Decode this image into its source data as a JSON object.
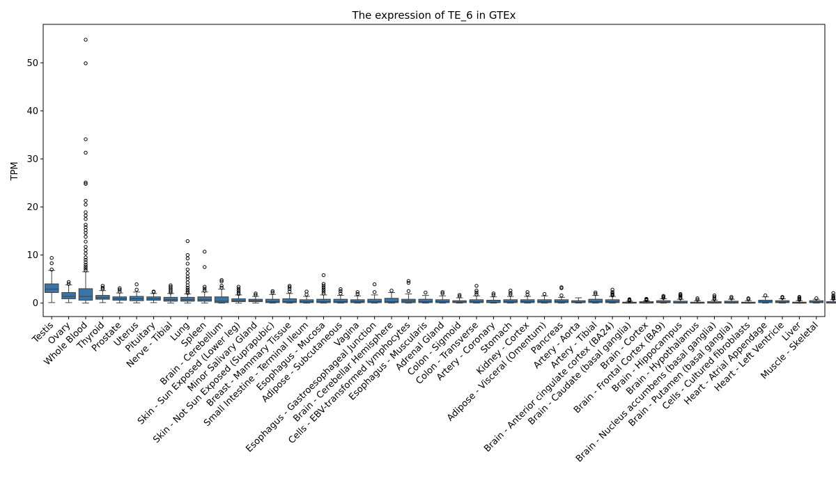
{
  "chart_data": {
    "type": "box",
    "title": "The expression of TE_6 in GTEx",
    "xlabel": "",
    "ylabel": "TPM",
    "ylim": [
      -2.8,
      58
    ],
    "yticks": [
      0,
      10,
      20,
      30,
      40,
      50
    ],
    "grid": false,
    "legend": "none",
    "box_color": "#3a75a6",
    "categories": [
      "Testis",
      "Ovary",
      "Whole Blood",
      "Thyroid",
      "Prostate",
      "Uterus",
      "Pituitary",
      "Nerve - Tibial",
      "Lung",
      "Spleen",
      "Brain - Cerebellum",
      "Skin - Sun Exposed (Lower leg)",
      "Minor Salivary Gland",
      "Skin - Not Sun Exposed (Suprapubic)",
      "Breast - Mammary Tissue",
      "Small Intestine - Terminal Ileum",
      "Esophagus - Mucosa",
      "Adipose - Subcutaneous",
      "Vagina",
      "Esophagus - Gastroesophageal Junction",
      "Brain - Cerebellar Hemisphere",
      "Cells - EBV-transformed lymphocytes",
      "Esophagus - Muscularis",
      "Adrenal Gland",
      "Colon - Sigmoid",
      "Colon - Transverse",
      "Artery - Coronary",
      "Stomach",
      "Kidney - Cortex",
      "Adipose - Visceral (Omentum)",
      "Pancreas",
      "Artery - Aorta",
      "Artery - Tibial",
      "Brain - Anterior cingulate cortex (BA24)",
      "Brain - Caudate (basal ganglia)",
      "Brain - Cortex",
      "Brain - Frontal Cortex (BA9)",
      "Brain - Hippocampus",
      "Brain - Hypothalamus",
      "Brain - Nucleus accumbens (basal ganglia)",
      "Brain - Putamen (basal ganglia)",
      "Cells - Cultured fibroblasts",
      "Heart - Atrial Appendage",
      "Heart - Left Ventricle",
      "Liver",
      "Muscle - Skeletal"
    ],
    "boxes": [
      {
        "q1": 2.2,
        "median": 2.9,
        "q3": 4.0,
        "whislo": 0.1,
        "whishi": 6.8,
        "fliers": [
          7.0,
          8.3,
          9.4
        ]
      },
      {
        "q1": 0.9,
        "median": 1.4,
        "q3": 2.2,
        "whislo": 0.1,
        "whishi": 3.8,
        "fliers": [
          4.0,
          4.4
        ]
      },
      {
        "q1": 0.6,
        "median": 1.4,
        "q3": 3.0,
        "whislo": 0.0,
        "whishi": 6.5,
        "fliers": [
          6.8,
          7.2,
          7.6,
          8.0,
          8.5,
          9.0,
          9.5,
          10.3,
          11.0,
          11.7,
          12.8,
          13.8,
          14.6,
          15.2,
          15.8,
          16.3,
          17.5,
          18.2,
          18.9,
          20.5,
          21.3,
          24.8,
          25.1,
          31.3,
          34.1,
          49.9,
          54.8
        ]
      },
      {
        "q1": 0.8,
        "median": 1.1,
        "q3": 1.6,
        "whislo": 0.1,
        "whishi": 2.6,
        "fliers": [
          2.9,
          3.2,
          3.6
        ]
      },
      {
        "q1": 0.6,
        "median": 0.9,
        "q3": 1.3,
        "whislo": 0.05,
        "whishi": 2.1,
        "fliers": [
          2.4,
          2.8,
          3.1
        ]
      },
      {
        "q1": 0.5,
        "median": 0.9,
        "q3": 1.4,
        "whislo": 0.05,
        "whishi": 2.3,
        "fliers": [
          2.8,
          3.9
        ]
      },
      {
        "q1": 0.6,
        "median": 0.9,
        "q3": 1.3,
        "whislo": 0.1,
        "whishi": 2.0,
        "fliers": [
          2.3,
          2.4
        ]
      },
      {
        "q1": 0.4,
        "median": 0.7,
        "q3": 1.2,
        "whislo": 0.0,
        "whishi": 2.0,
        "fliers": [
          2.2,
          2.5,
          2.8,
          3.1,
          3.4,
          3.7
        ]
      },
      {
        "q1": 0.4,
        "median": 0.7,
        "q3": 1.2,
        "whislo": 0.0,
        "whishi": 1.9,
        "fliers": [
          2.1,
          2.4,
          2.8,
          3.2,
          3.7,
          4.3,
          5.0,
          5.5,
          6.2,
          7.0,
          8.2,
          9.3,
          10.0,
          12.9
        ]
      },
      {
        "q1": 0.4,
        "median": 0.7,
        "q3": 1.3,
        "whislo": 0.0,
        "whishi": 2.3,
        "fliers": [
          2.6,
          3.0,
          3.4,
          7.5,
          10.7
        ]
      },
      {
        "q1": 0.1,
        "median": 0.4,
        "q3": 1.3,
        "whislo": 0.0,
        "whishi": 2.9,
        "fliers": [
          3.2,
          3.6,
          4.5,
          4.8
        ]
      },
      {
        "q1": 0.3,
        "median": 0.5,
        "q3": 0.9,
        "whislo": 0.0,
        "whishi": 1.7,
        "fliers": [
          1.9,
          2.2,
          2.6,
          3.0,
          3.4
        ]
      },
      {
        "q1": 0.3,
        "median": 0.5,
        "q3": 0.8,
        "whislo": 0.0,
        "whishi": 1.4,
        "fliers": [
          1.7,
          2.0
        ]
      },
      {
        "q1": 0.1,
        "median": 0.3,
        "q3": 0.8,
        "whislo": 0.0,
        "whishi": 1.8,
        "fliers": [
          2.2,
          2.5
        ]
      },
      {
        "q1": 0.1,
        "median": 0.3,
        "q3": 0.9,
        "whislo": 0.0,
        "whishi": 2.0,
        "fliers": [
          2.4,
          2.9,
          3.3,
          3.6
        ]
      },
      {
        "q1": 0.1,
        "median": 0.3,
        "q3": 0.7,
        "whislo": 0.0,
        "whishi": 1.4,
        "fliers": [
          1.8,
          2.4
        ]
      },
      {
        "q1": 0.1,
        "median": 0.3,
        "q3": 0.8,
        "whislo": 0.0,
        "whishi": 1.7,
        "fliers": [
          2.0,
          2.4,
          2.8,
          3.2,
          3.6,
          4.0,
          5.8
        ]
      },
      {
        "q1": 0.1,
        "median": 0.3,
        "q3": 0.8,
        "whislo": 0.0,
        "whishi": 1.6,
        "fliers": [
          2.0,
          2.5,
          2.9
        ]
      },
      {
        "q1": 0.1,
        "median": 0.3,
        "q3": 0.7,
        "whislo": 0.0,
        "whishi": 1.5,
        "fliers": [
          1.9,
          2.3
        ]
      },
      {
        "q1": 0.1,
        "median": 0.3,
        "q3": 0.8,
        "whislo": 0.0,
        "whishi": 1.7,
        "fliers": [
          2.3,
          3.9
        ]
      },
      {
        "q1": 0.1,
        "median": 0.3,
        "q3": 1.0,
        "whislo": 0.0,
        "whishi": 2.2,
        "fliers": [
          2.6
        ]
      },
      {
        "q1": 0.1,
        "median": 0.4,
        "q3": 0.8,
        "whislo": 0.0,
        "whishi": 1.9,
        "fliers": [
          2.5,
          4.2,
          4.6
        ]
      },
      {
        "q1": 0.1,
        "median": 0.3,
        "q3": 0.8,
        "whislo": 0.0,
        "whishi": 1.6,
        "fliers": [
          2.2
        ]
      },
      {
        "q1": 0.1,
        "median": 0.3,
        "q3": 0.7,
        "whislo": 0.0,
        "whishi": 1.5,
        "fliers": [
          2.0,
          2.3
        ]
      },
      {
        "q1": 0.1,
        "median": 0.2,
        "q3": 0.5,
        "whislo": 0.0,
        "whishi": 1.1,
        "fliers": [
          1.4,
          1.7
        ]
      },
      {
        "q1": 0.1,
        "median": 0.3,
        "q3": 0.7,
        "whislo": 0.0,
        "whishi": 1.5,
        "fliers": [
          1.8,
          2.2,
          2.6,
          3.6
        ]
      },
      {
        "q1": 0.1,
        "median": 0.2,
        "q3": 0.6,
        "whislo": 0.0,
        "whishi": 1.3,
        "fliers": [
          1.7,
          2.0
        ]
      },
      {
        "q1": 0.1,
        "median": 0.3,
        "q3": 0.7,
        "whislo": 0.0,
        "whishi": 1.4,
        "fliers": [
          1.8,
          2.1,
          2.6
        ]
      },
      {
        "q1": 0.1,
        "median": 0.3,
        "q3": 0.7,
        "whislo": 0.0,
        "whishi": 1.4,
        "fliers": [
          1.8,
          2.3
        ]
      },
      {
        "q1": 0.1,
        "median": 0.3,
        "q3": 0.7,
        "whislo": 0.0,
        "whishi": 1.5,
        "fliers": [
          1.9
        ]
      },
      {
        "q1": 0.1,
        "median": 0.3,
        "q3": 0.7,
        "whislo": 0.0,
        "whishi": 1.2,
        "fliers": [
          1.6,
          3.1,
          3.3
        ]
      },
      {
        "q1": 0.1,
        "median": 0.2,
        "q3": 0.5,
        "whislo": 0.0,
        "whishi": 1.1,
        "fliers": []
      },
      {
        "q1": 0.1,
        "median": 0.3,
        "q3": 0.8,
        "whislo": 0.0,
        "whishi": 1.6,
        "fliers": [
          1.9,
          2.2
        ]
      },
      {
        "q1": 0.1,
        "median": 0.3,
        "q3": 0.7,
        "whislo": 0.0,
        "whishi": 1.4,
        "fliers": [
          1.6,
          1.8,
          2.0,
          2.3,
          2.8
        ]
      },
      {
        "q1": 0.0,
        "median": 0.1,
        "q3": 0.2,
        "whislo": 0.0,
        "whishi": 0.4,
        "fliers": [
          0.5,
          0.6,
          0.7,
          0.8
        ]
      },
      {
        "q1": 0.0,
        "median": 0.1,
        "q3": 0.3,
        "whislo": 0.0,
        "whishi": 0.5,
        "fliers": [
          0.6,
          0.7,
          0.8,
          0.9
        ]
      },
      {
        "q1": 0.1,
        "median": 0.2,
        "q3": 0.5,
        "whislo": 0.0,
        "whishi": 0.9,
        "fliers": [
          1.1,
          1.3,
          1.5
        ]
      },
      {
        "q1": 0.0,
        "median": 0.1,
        "q3": 0.4,
        "whislo": 0.0,
        "whishi": 0.8,
        "fliers": [
          1.0,
          1.2,
          1.5,
          1.7,
          1.9
        ]
      },
      {
        "q1": 0.0,
        "median": 0.1,
        "q3": 0.2,
        "whislo": 0.0,
        "whishi": 0.5,
        "fliers": [
          0.7,
          1.0
        ]
      },
      {
        "q1": 0.0,
        "median": 0.1,
        "q3": 0.3,
        "whislo": 0.0,
        "whishi": 0.6,
        "fliers": [
          0.8,
          1.0,
          1.3,
          1.6
        ]
      },
      {
        "q1": 0.0,
        "median": 0.1,
        "q3": 0.4,
        "whislo": 0.0,
        "whishi": 0.8,
        "fliers": [
          1.0,
          1.3
        ]
      },
      {
        "q1": 0.0,
        "median": 0.1,
        "q3": 0.2,
        "whislo": 0.0,
        "whishi": 0.5,
        "fliers": [
          0.8,
          1.0
        ]
      },
      {
        "q1": 0.1,
        "median": 0.3,
        "q3": 0.6,
        "whislo": 0.0,
        "whishi": 1.3,
        "fliers": [
          1.6
        ]
      },
      {
        "q1": 0.1,
        "median": 0.2,
        "q3": 0.5,
        "whislo": 0.0,
        "whishi": 0.9,
        "fliers": [
          1.1,
          1.3
        ]
      },
      {
        "q1": 0.0,
        "median": 0.1,
        "q3": 0.2,
        "whislo": 0.0,
        "whishi": 0.5,
        "fliers": [
          0.7,
          0.9,
          1.1,
          1.3
        ]
      },
      {
        "q1": 0.1,
        "median": 0.2,
        "q3": 0.5,
        "whislo": 0.0,
        "whishi": 0.8,
        "fliers": [
          1.0
        ]
      },
      {
        "q1": 0.0,
        "median": 0.1,
        "q3": 0.3,
        "whislo": 0.0,
        "whishi": 0.7,
        "fliers": [
          0.9,
          1.1,
          1.3,
          1.6,
          2.1
        ]
      }
    ]
  }
}
